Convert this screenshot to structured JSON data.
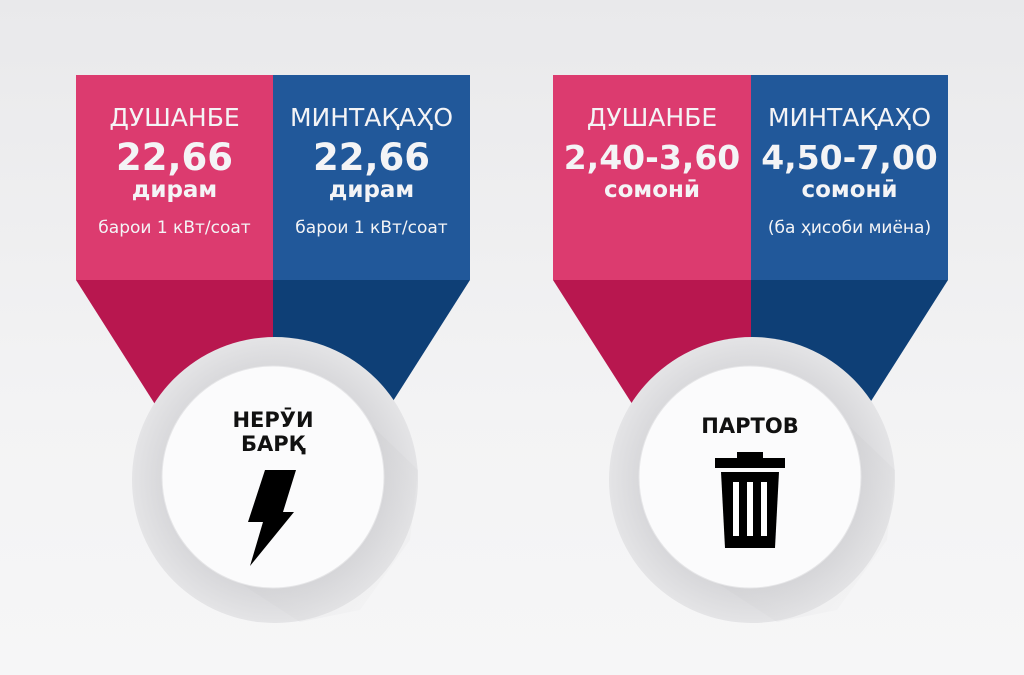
{
  "colors": {
    "city": "#dc3b6f",
    "city_dark": "#b8174f",
    "region": "#21589a",
    "region_dark": "#0e3f76",
    "text": "#f4f4f6"
  },
  "panels": [
    {
      "category": "НЕРӮИ\nБАРҚ",
      "category_lines": [
        "НЕРӮИ",
        "БАРҚ"
      ],
      "icon": "lightning-bolt-icon",
      "city": {
        "label": "ДУШАНБЕ",
        "value": "22,66",
        "unit": "дирам",
        "note": "барои 1 кВт/соат"
      },
      "region": {
        "label": "МИНТАҚАҲО",
        "value": "22,66",
        "unit": "дирам",
        "note": "барои 1 кВт/соат"
      }
    },
    {
      "category": "ПАРТОВ",
      "icon": "trash-can-icon",
      "city": {
        "label": "ДУШАНБЕ",
        "value": "2,40-3,60",
        "unit": "сомонӣ"
      },
      "region": {
        "label": "МИНТАҚАҲО",
        "value": "4,50-7,00",
        "unit": "сомонӣ",
        "note": "(ба ҳисоби миёна)"
      }
    }
  ]
}
